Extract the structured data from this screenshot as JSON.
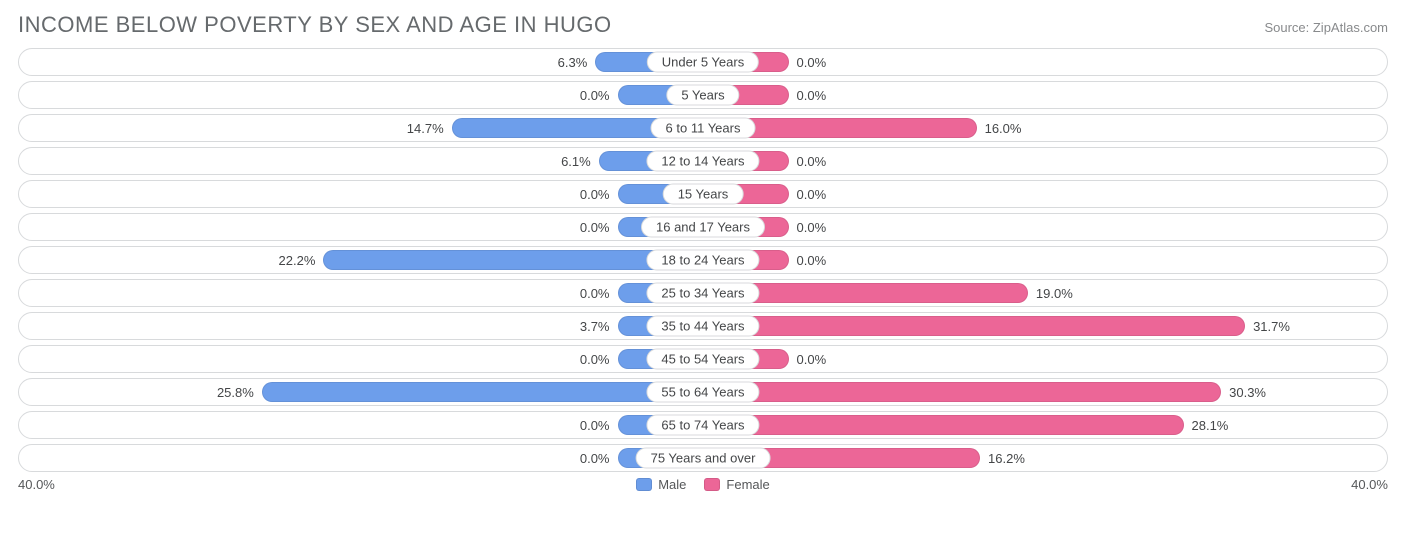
{
  "title": "INCOME BELOW POVERTY BY SEX AND AGE IN HUGO",
  "source": "Source: ZipAtlas.com",
  "axis_max": 40.0,
  "axis_left_label": "40.0%",
  "axis_right_label": "40.0%",
  "min_bar_pct": 5.0,
  "colors": {
    "male": "#6d9eeb",
    "female": "#ec6697",
    "track_border": "#d8dadc",
    "text": "#444648",
    "title": "#666a6d",
    "source": "#888a8c",
    "background": "#ffffff"
  },
  "legend": [
    {
      "label": "Male",
      "color": "#6d9eeb"
    },
    {
      "label": "Female",
      "color": "#ec6697"
    }
  ],
  "rows": [
    {
      "category": "Under 5 Years",
      "male": 6.3,
      "female": 0.0
    },
    {
      "category": "5 Years",
      "male": 0.0,
      "female": 0.0
    },
    {
      "category": "6 to 11 Years",
      "male": 14.7,
      "female": 16.0
    },
    {
      "category": "12 to 14 Years",
      "male": 6.1,
      "female": 0.0
    },
    {
      "category": "15 Years",
      "male": 0.0,
      "female": 0.0
    },
    {
      "category": "16 and 17 Years",
      "male": 0.0,
      "female": 0.0
    },
    {
      "category": "18 to 24 Years",
      "male": 22.2,
      "female": 0.0
    },
    {
      "category": "25 to 34 Years",
      "male": 0.0,
      "female": 19.0
    },
    {
      "category": "35 to 44 Years",
      "male": 3.7,
      "female": 31.7
    },
    {
      "category": "45 to 54 Years",
      "male": 0.0,
      "female": 0.0
    },
    {
      "category": "55 to 64 Years",
      "male": 25.8,
      "female": 30.3
    },
    {
      "category": "65 to 74 Years",
      "male": 0.0,
      "female": 28.1
    },
    {
      "category": "75 Years and over",
      "male": 0.0,
      "female": 16.2
    }
  ],
  "fontsize": {
    "title": 22,
    "label": 13
  }
}
